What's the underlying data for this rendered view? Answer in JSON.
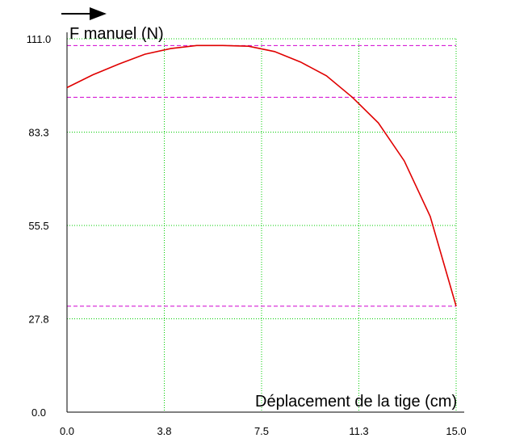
{
  "chart_data": {
    "type": "line",
    "ylabel": "F manuel (N)",
    "xlabel": "Déplacement de la tige (cm)",
    "xlim": [
      0,
      15
    ],
    "ylim": [
      0,
      111
    ],
    "x_ticks": [
      "0.0",
      "3.8",
      "7.5",
      "11.3",
      "15.0"
    ],
    "y_ticks": [
      "0.0",
      "27.8",
      "55.5",
      "83.3",
      "111.0"
    ],
    "grid": true,
    "grid_color": "#00cc00",
    "series": [
      {
        "color": "#e00000",
        "x": [
          0,
          1,
          2,
          3,
          4,
          5,
          6,
          7,
          8,
          9,
          10,
          11,
          12,
          13,
          14,
          15
        ],
        "y": [
          96.5,
          100.3,
          103.5,
          106.4,
          108.1,
          109.0,
          109.0,
          108.8,
          107.2,
          104.1,
          100.0,
          93.6,
          86.0,
          74.7,
          58.2,
          31.5
        ]
      }
    ],
    "reference_lines": [
      {
        "y": 109.0,
        "color": "#d000d0"
      },
      {
        "y": 93.6,
        "color": "#d000d0"
      },
      {
        "y": 31.5,
        "color": "#d000d0"
      }
    ]
  }
}
